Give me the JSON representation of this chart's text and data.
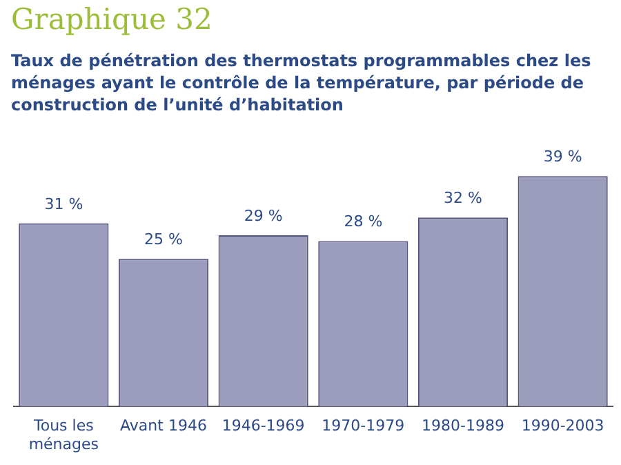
{
  "chart_data": {
    "type": "bar",
    "title": "Graphique 32",
    "subtitle": "Taux de pénétration des thermostats programmables chez les ménages ayant le contrôle de la température, par période de construction de l’unité d’habitation",
    "categories": [
      "Tous les ménages",
      "Avant 1946",
      "1946-1969",
      "1970-1979",
      "1980-1989",
      "1990-2003"
    ],
    "values": [
      31,
      25,
      29,
      28,
      32,
      39
    ],
    "value_labels": [
      "31 %",
      "25 %",
      "29 %",
      "28 %",
      "32 %",
      "39 %"
    ],
    "color": "#9c9cbc",
    "grid": false,
    "legend": false
  }
}
